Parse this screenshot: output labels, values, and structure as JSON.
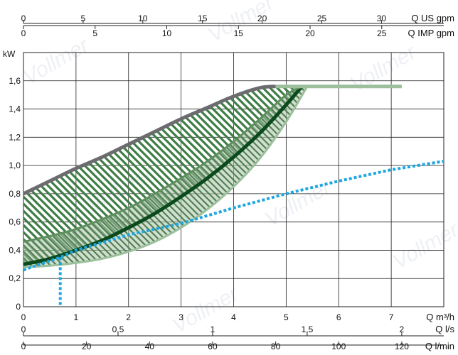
{
  "chart_data": {
    "type": "line",
    "title": "",
    "ylabel": "kW",
    "ylim": [
      0,
      1.8
    ],
    "yticks": [
      "0",
      "0,2",
      "0,4",
      "0,6",
      "0,8",
      "1,0",
      "1,2",
      "1,4",
      "1,6"
    ],
    "grid": true,
    "x_axes": [
      {
        "unit": "Q m³/h",
        "range": [
          0,
          8
        ],
        "ticks": [
          "0",
          "1",
          "2",
          "3",
          "4",
          "5",
          "6",
          "7"
        ]
      },
      {
        "unit": "Q l/s",
        "range": [
          0,
          2.2222
        ],
        "ticks": [
          "0",
          "0,5",
          "1",
          "1,5",
          "2"
        ]
      },
      {
        "unit": "Q l/min",
        "range": [
          0,
          133.33
        ],
        "ticks": [
          "0",
          "20",
          "40",
          "60",
          "80",
          "100",
          "120"
        ]
      },
      {
        "unit": "Q US gpm",
        "range": [
          0,
          35.22
        ],
        "ticks": [
          "0",
          "5",
          "10",
          "15",
          "20",
          "25",
          "30"
        ]
      },
      {
        "unit": "Q IMP gpm",
        "range": [
          0,
          29.33
        ],
        "ticks": [
          "0",
          "5",
          "10",
          "15",
          "20",
          "25"
        ]
      }
    ],
    "series": [
      {
        "style": "upper-envelope",
        "color": "#6c6c70",
        "x": [
          0,
          0.5,
          1,
          1.5,
          2,
          2.5,
          3,
          3.5,
          4,
          4.5,
          4.8
        ],
        "y": [
          0.8,
          0.89,
          0.98,
          1.06,
          1.15,
          1.24,
          1.33,
          1.41,
          1.49,
          1.55,
          1.56
        ]
      },
      {
        "style": "main-curve",
        "color": "#0b4a1c",
        "x": [
          0,
          0.5,
          1,
          1.5,
          2,
          2.5,
          3,
          3.5,
          4,
          4.5,
          5,
          5.3
        ],
        "y": [
          0.3,
          0.34,
          0.4,
          0.47,
          0.56,
          0.66,
          0.78,
          0.91,
          1.06,
          1.23,
          1.43,
          1.56
        ]
      },
      {
        "style": "band-top",
        "color": "#5f8f5f",
        "x": [
          0,
          0.5,
          1,
          1.5,
          2,
          2.5,
          3,
          3.5,
          4,
          4.5,
          5,
          5.3
        ],
        "y": [
          0.46,
          0.5,
          0.55,
          0.62,
          0.7,
          0.8,
          0.91,
          1.03,
          1.17,
          1.33,
          1.5,
          1.56
        ]
      },
      {
        "style": "band-bottom",
        "color": "#9cc09c",
        "x": [
          0,
          0.5,
          1,
          1.5,
          2,
          2.5,
          3,
          3.5,
          4,
          4.5,
          5,
          5.4
        ],
        "y": [
          0.28,
          0.29,
          0.31,
          0.34,
          0.39,
          0.46,
          0.56,
          0.69,
          0.85,
          1.05,
          1.31,
          1.56
        ]
      },
      {
        "style": "limit-line",
        "color": "#9cbf9c",
        "x": [
          4.8,
          7.2
        ],
        "y": [
          1.56,
          1.56
        ]
      },
      {
        "style": "system-curve",
        "color": "#1ea6e0",
        "x": [
          0,
          0.7,
          1,
          2,
          3,
          4,
          5,
          6,
          7,
          8,
          8.6
        ],
        "y": [
          0.26,
          0.35,
          0.4,
          0.51,
          0.59,
          0.7,
          0.8,
          0.89,
          0.97,
          1.03,
          1.08
        ]
      },
      {
        "style": "operating-drop",
        "color": "#1ea6e0",
        "x": [
          0.7,
          0.7
        ],
        "y": [
          0.35,
          0
        ]
      }
    ]
  }
}
